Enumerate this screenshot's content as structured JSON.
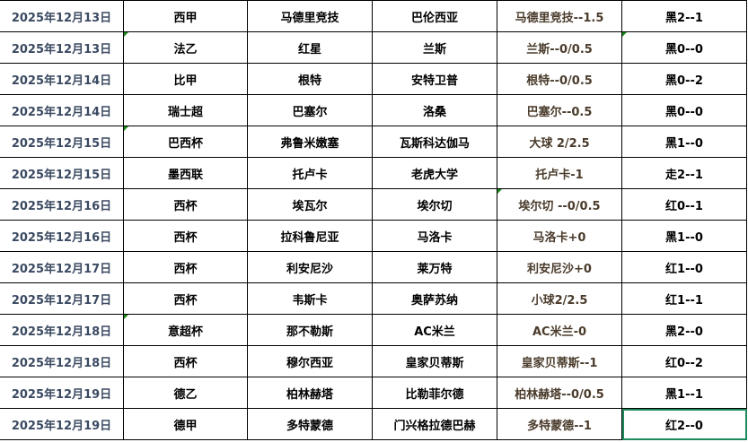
{
  "colors": {
    "date": "#3b4a62",
    "handicap": "#4a3b2b",
    "selection": "#1f8a5b",
    "comment_marker": "#1a8a1a"
  },
  "rows": [
    {
      "date": "2025年12月13日",
      "league": "西甲",
      "home": "马德里竞技",
      "away": "巴伦西亚",
      "handicap": "马德里竞技--1.5",
      "result": "黑2--1"
    },
    {
      "date": "2025年12月13日",
      "league": "法乙",
      "home": "红星",
      "away": "兰斯",
      "handicap": "兰斯--0/0.5",
      "result": "黑0--0"
    },
    {
      "date": "2025年12月14日",
      "league": "比甲",
      "home": "根特",
      "away": "安特卫普",
      "handicap": "根特--0/0.5",
      "result": "黑0--2"
    },
    {
      "date": "2025年12月14日",
      "league": "瑞士超",
      "home": "巴塞尔",
      "away": "洛桑",
      "handicap": "巴塞尔--0.5",
      "result": "黑0--0"
    },
    {
      "date": "2025年12月15日",
      "league": "巴西杯",
      "home": "弗鲁米嫩塞",
      "away": "瓦斯科达伽马",
      "handicap": "大球   2/2.5",
      "result": "黑1--0"
    },
    {
      "date": "2025年12月15日",
      "league": "墨西联",
      "home": "托卢卡",
      "away": "老虎大学",
      "handicap": "托卢卡-1",
      "result": "走2--1"
    },
    {
      "date": "2025年12月16日",
      "league": "西杯",
      "home": "埃瓦尔",
      "away": "埃尔切",
      "handicap": "埃尔切 --0/0.5",
      "result": "红0--1"
    },
    {
      "date": "2025年12月16日",
      "league": "西杯",
      "home": "拉科鲁尼亚",
      "away": "马洛卡",
      "handicap": "马洛卡+0",
      "result": "黑1--0"
    },
    {
      "date": "2025年12月17日",
      "league": "西杯",
      "home": "利安尼沙",
      "away": "莱万特",
      "handicap": "利安尼沙+0",
      "result": "红1--0"
    },
    {
      "date": "2025年12月17日",
      "league": "西杯",
      "home": "韦斯卡",
      "away": "奥萨苏纳",
      "handicap": "小球2/2.5",
      "result": "红1--1"
    },
    {
      "date": "2025年12月18日",
      "league": "意超杯",
      "home": "那不勒斯",
      "away": "AC米兰",
      "handicap": "AC米兰-0",
      "result": "黑2--0"
    },
    {
      "date": "2025年12月18日",
      "league": "西杯",
      "home": "穆尔西亚",
      "away": "皇家贝蒂斯",
      "handicap": "皇家贝蒂斯--1",
      "result": "红0--2"
    },
    {
      "date": "2025年12月19日",
      "league": "德乙",
      "home": "柏林赫塔",
      "away": "比勒菲尔德",
      "handicap": "柏林赫塔--0/0.5",
      "result": "黑1--1"
    },
    {
      "date": "2025年12月19日",
      "league": "德甲",
      "home": "多特蒙德",
      "away": "门兴格拉德巴赫",
      "handicap": "多特蒙德--1",
      "result": "红2--0"
    }
  ]
}
